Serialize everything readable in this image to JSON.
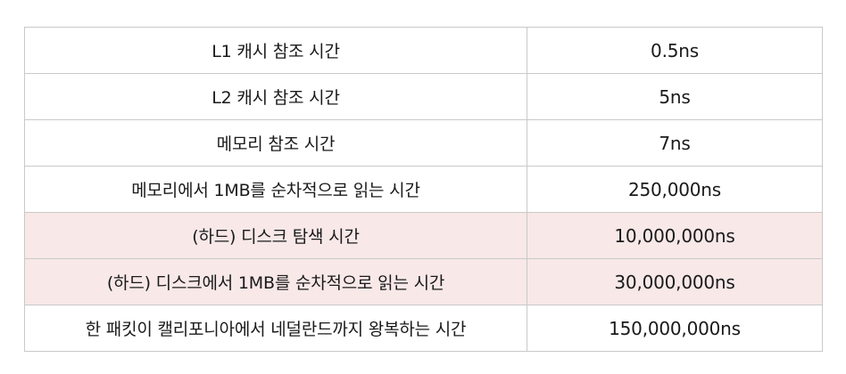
{
  "colors": {
    "highlight_row_background": "#f8e8e8",
    "border": "#c9c9c9"
  },
  "rows": [
    {
      "operation": "L1 캐시 참조 시간",
      "time": "0.5ns",
      "highlighted": false
    },
    {
      "operation": "L2 캐시 참조 시간",
      "time": "5ns",
      "highlighted": false
    },
    {
      "operation": "메모리 참조 시간",
      "time": "7ns",
      "highlighted": false
    },
    {
      "operation": "메모리에서 1MB를 순차적으로 읽는 시간",
      "time": "250,000ns",
      "highlighted": false
    },
    {
      "operation": "(하드) 디스크 탐색 시간",
      "time": "10,000,000ns",
      "highlighted": true
    },
    {
      "operation": "(하드) 디스크에서 1MB를 순차적으로 읽는 시간",
      "time": "30,000,000ns",
      "highlighted": true
    },
    {
      "operation": "한 패킷이 캘리포니아에서 네덜란드까지 왕복하는 시간",
      "time": "150,000,000ns",
      "highlighted": false
    }
  ]
}
